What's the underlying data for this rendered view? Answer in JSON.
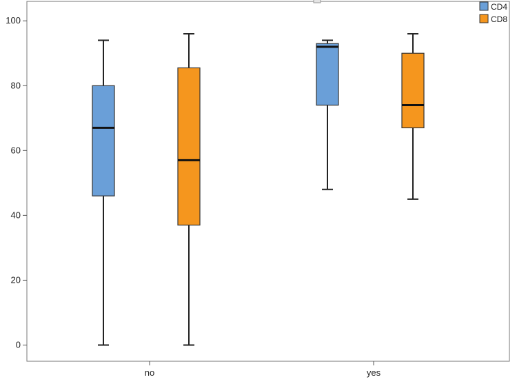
{
  "chart_data": {
    "type": "boxplot",
    "categories": [
      "no",
      "yes"
    ],
    "ylim": [
      -5,
      106
    ],
    "yticks": [
      0,
      20,
      40,
      60,
      80,
      100
    ],
    "grid": false,
    "legend_position": "top-right",
    "series": [
      {
        "name": "CD4",
        "color": "#6a9fd8",
        "boxes": [
          {
            "category": "no",
            "min": 0,
            "q1": 46,
            "median": 67,
            "q3": 80,
            "max": 94
          },
          {
            "category": "yes",
            "min": 48,
            "q1": 74,
            "median": 92,
            "q3": 93,
            "max": 94
          }
        ]
      },
      {
        "name": "CD8",
        "color": "#f5961e",
        "boxes": [
          {
            "category": "no",
            "min": 0,
            "q1": 37,
            "median": 57,
            "q3": 85.5,
            "max": 96
          },
          {
            "category": "yes",
            "min": 45,
            "q1": 67,
            "median": 74,
            "q3": 90,
            "max": 96
          }
        ]
      }
    ]
  }
}
